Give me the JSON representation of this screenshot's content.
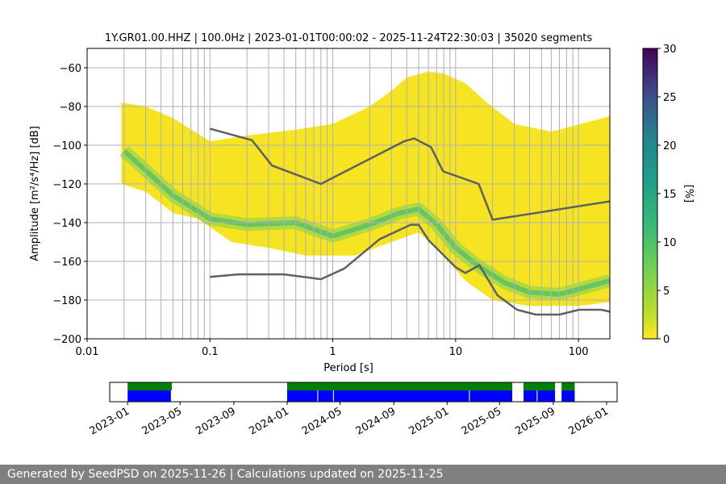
{
  "chart_data": {
    "type": "heatmap",
    "title": "1Y.GR01.00.HHZ | 100.0Hz | 2023-01-01T00:00:02 - 2025-11-24T22:30:03 | 35020 segments",
    "xlabel": "Period [s]",
    "ylabel": "Amplitude [m²/s⁴/Hz] [dB]",
    "xscale": "log",
    "xlim": [
      0.01,
      180
    ],
    "ylim": [
      -200,
      -50
    ],
    "xticks": [
      {
        "value": 0.01,
        "label": "0.01"
      },
      {
        "value": 0.1,
        "label": "0.1"
      },
      {
        "value": 1,
        "label": "1"
      },
      {
        "value": 10,
        "label": "10"
      },
      {
        "value": 100,
        "label": "100"
      }
    ],
    "yticks": [
      {
        "value": -60,
        "label": "−60"
      },
      {
        "value": -80,
        "label": "−80"
      },
      {
        "value": -100,
        "label": "−100"
      },
      {
        "value": -120,
        "label": "−120"
      },
      {
        "value": -140,
        "label": "−140"
      },
      {
        "value": -160,
        "label": "−160"
      },
      {
        "value": -180,
        "label": "−180"
      },
      {
        "value": -200,
        "label": "−200"
      }
    ],
    "colorbar": {
      "label": "[%]",
      "range": [
        0,
        30
      ],
      "ticks": [
        {
          "value": 0,
          "label": "0"
        },
        {
          "value": 5,
          "label": "5"
        },
        {
          "value": 10,
          "label": "10"
        },
        {
          "value": 15,
          "label": "15"
        },
        {
          "value": 20,
          "label": "20"
        },
        {
          "value": 25,
          "label": "25"
        },
        {
          "value": 30,
          "label": "30"
        }
      ]
    },
    "series": [
      {
        "name": "NHNM",
        "points": [
          [
            0.1,
            -91.5
          ],
          [
            0.22,
            -97.4
          ],
          [
            0.32,
            -110.5
          ],
          [
            0.8,
            -120
          ],
          [
            3.8,
            -98
          ],
          [
            4.6,
            -96.5
          ],
          [
            6.3,
            -101
          ],
          [
            7.9,
            -113.5
          ],
          [
            15.4,
            -120
          ],
          [
            20,
            -138.5
          ],
          [
            180,
            -129
          ]
        ]
      },
      {
        "name": "NLNM",
        "points": [
          [
            0.1,
            -168
          ],
          [
            0.17,
            -166.7
          ],
          [
            0.4,
            -166.7
          ],
          [
            0.8,
            -169.2
          ],
          [
            1.24,
            -163.7
          ],
          [
            2.4,
            -148.6
          ],
          [
            4.3,
            -141.1
          ],
          [
            5,
            -141.1
          ],
          [
            6,
            -149
          ],
          [
            10,
            -163
          ],
          [
            12,
            -166
          ],
          [
            15.6,
            -162
          ],
          [
            21.9,
            -177.5
          ],
          [
            31.6,
            -185
          ],
          [
            45,
            -187.5
          ],
          [
            70,
            -187.5
          ],
          [
            101,
            -185
          ],
          [
            154,
            -185
          ],
          [
            180,
            -186
          ]
        ]
      },
      {
        "name": "PSD mode",
        "points": [
          [
            0.02,
            -103
          ],
          [
            0.03,
            -113
          ],
          [
            0.05,
            -126
          ],
          [
            0.1,
            -138
          ],
          [
            0.2,
            -141
          ],
          [
            0.5,
            -140
          ],
          [
            1,
            -147
          ],
          [
            2,
            -141
          ],
          [
            3.5,
            -135
          ],
          [
            5,
            -133
          ],
          [
            7,
            -141
          ],
          [
            10,
            -153
          ],
          [
            15,
            -162
          ],
          [
            25,
            -171
          ],
          [
            40,
            -176
          ],
          [
            70,
            -177
          ],
          [
            120,
            -173
          ],
          [
            180,
            -170
          ]
        ]
      },
      {
        "name": "Coverage low",
        "points": [
          [
            0.019,
            -120
          ],
          [
            0.03,
            -124
          ],
          [
            0.05,
            -135
          ],
          [
            0.08,
            -138
          ],
          [
            0.15,
            -150
          ],
          [
            0.3,
            -153
          ],
          [
            0.6,
            -157
          ],
          [
            1.5,
            -157
          ],
          [
            3,
            -150
          ],
          [
            5,
            -145
          ],
          [
            7,
            -153
          ],
          [
            12,
            -170
          ],
          [
            20,
            -180
          ],
          [
            40,
            -183
          ],
          [
            100,
            -183
          ],
          [
            180,
            -181
          ]
        ]
      },
      {
        "name": "Coverage high",
        "points": [
          [
            0.019,
            -78
          ],
          [
            0.03,
            -80
          ],
          [
            0.05,
            -86
          ],
          [
            0.1,
            -98
          ],
          [
            0.2,
            -95
          ],
          [
            0.5,
            -92
          ],
          [
            1,
            -89
          ],
          [
            2,
            -80
          ],
          [
            3,
            -72
          ],
          [
            4,
            -65
          ],
          [
            6,
            -62
          ],
          [
            8,
            -63
          ],
          [
            12,
            -68
          ],
          [
            18,
            -78
          ],
          [
            30,
            -89
          ],
          [
            60,
            -93
          ],
          [
            120,
            -88
          ],
          [
            180,
            -85
          ]
        ]
      }
    ]
  },
  "timeline": {
    "xlim": [
      "2022-11-21",
      "2026-01-25"
    ],
    "tick_labels": [
      {
        "date": "2023-01-01",
        "label": "2023-01"
      },
      {
        "date": "2023-05-01",
        "label": "2023-05"
      },
      {
        "date": "2023-09-01",
        "label": "2023-09"
      },
      {
        "date": "2024-01-01",
        "label": "2024-01"
      },
      {
        "date": "2024-05-01",
        "label": "2024-05"
      },
      {
        "date": "2024-09-01",
        "label": "2024-09"
      },
      {
        "date": "2025-01-01",
        "label": "2025-01"
      },
      {
        "date": "2025-05-01",
        "label": "2025-05"
      },
      {
        "date": "2025-09-01",
        "label": "2025-09"
      },
      {
        "date": "2026-01-01",
        "label": "2026-01"
      }
    ],
    "available_data": [
      [
        "2023-01-01",
        "2023-04-12"
      ],
      [
        "2024-01-01",
        "2025-05-30"
      ],
      [
        "2025-06-25",
        "2025-09-05"
      ],
      [
        "2025-09-20",
        "2025-10-20"
      ]
    ],
    "psd_segments": [
      [
        "2023-01-01",
        "2023-04-10"
      ],
      [
        "2024-01-01",
        "2024-03-10"
      ],
      [
        "2024-03-12",
        "2024-04-15"
      ],
      [
        "2024-04-17",
        "2025-02-20"
      ],
      [
        "2025-02-22",
        "2025-05-30"
      ],
      [
        "2025-06-25",
        "2025-07-25"
      ],
      [
        "2025-07-27",
        "2025-09-05"
      ],
      [
        "2025-09-20",
        "2025-10-20"
      ]
    ],
    "colors": {
      "available": "#008000",
      "psd": "#0000ff"
    }
  },
  "footer": "Generated by SeedPSD on 2025-11-26 | Calculations updated on 2025-11-25"
}
